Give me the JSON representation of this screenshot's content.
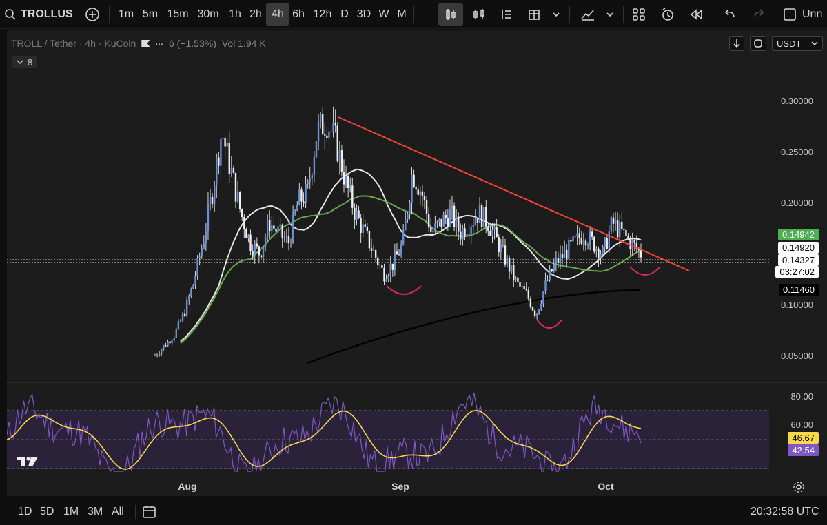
{
  "toolbar": {
    "symbol": "TROLLUS",
    "intervals": [
      "1m",
      "5m",
      "15m",
      "30m",
      "1h",
      "2h",
      "4h",
      "6h",
      "12h",
      "D",
      "3D",
      "W",
      "M"
    ],
    "active_interval": "4h",
    "unnamed_label": "Unn"
  },
  "legend": {
    "pair": "TROLL / Tether · 4h · KuCoin",
    "change": "6 (+1.53%)",
    "vol": "Vol 1.94 K",
    "indicator_count": "8"
  },
  "currency": "USDT",
  "price_axis": {
    "ticks": [
      "0.30000",
      "0.25000",
      "0.20000",
      "0.10000",
      "0.05000"
    ],
    "tags": [
      {
        "label": "0.14942",
        "bg": "#4caf50",
        "fg": "#ffffff"
      },
      {
        "label": "0.14920",
        "bg": "#ffffff",
        "fg": "#000000"
      },
      {
        "label": "0.14327",
        "bg": "#ffffff",
        "fg": "#000000"
      },
      {
        "label": "03:27:02",
        "bg": "#ffffff",
        "fg": "#000000"
      },
      {
        "label": "0.11460",
        "bg": "#000000",
        "fg": "#ffffff"
      }
    ]
  },
  "rsi_axis": {
    "ticks": [
      "80.00",
      "60.00"
    ],
    "tags": [
      {
        "label": "46.67",
        "bg": "#f7d84a",
        "fg": "#000000"
      },
      {
        "label": "42.54",
        "bg": "#7e57c2",
        "fg": "#ffffff"
      }
    ]
  },
  "time_axis": [
    "Aug",
    "Sep",
    "Oct"
  ],
  "bottom": {
    "ranges": [
      "1D",
      "5D",
      "1M",
      "3M",
      "All"
    ],
    "clock": "20:32:58 UTC"
  },
  "chart_data": {
    "type": "line",
    "price_range": [
      0.03,
      0.32
    ],
    "candles_close": [
      0.05,
      0.06,
      0.07,
      0.09,
      0.12,
      0.16,
      0.21,
      0.27,
      0.23,
      0.19,
      0.16,
      0.15,
      0.18,
      0.17,
      0.16,
      0.2,
      0.21,
      0.27,
      0.28,
      0.26,
      0.22,
      0.19,
      0.17,
      0.15,
      0.13,
      0.14,
      0.16,
      0.23,
      0.21,
      0.17,
      0.18,
      0.19,
      0.17,
      0.18,
      0.19,
      0.18,
      0.16,
      0.14,
      0.12,
      0.11,
      0.09,
      0.12,
      0.14,
      0.15,
      0.16,
      0.17,
      0.16,
      0.15,
      0.18,
      0.17,
      0.16,
      0.15
    ],
    "ma_white_last": 0.1492,
    "ma_green_last": 0.14942,
    "ma_black_last": 0.1146,
    "last_price": 0.14327,
    "trendline_start": 0.285,
    "rsi_levels": [
      70,
      30
    ],
    "rsi_last": 42.54,
    "rsi_ma_last": 46.67
  }
}
